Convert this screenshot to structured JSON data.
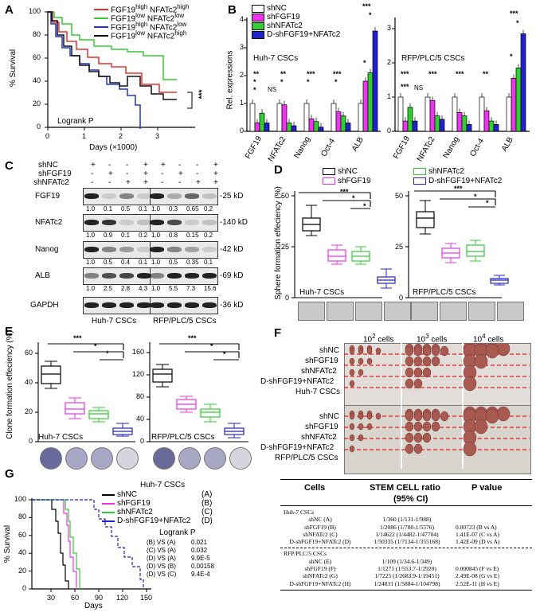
{
  "panels": {
    "A": "A",
    "B": "B",
    "C": "C",
    "D": "D",
    "E": "E",
    "F": "F",
    "G": "G"
  },
  "panelA": {
    "ylabel": "% Survival",
    "xlabel": "Days (×1000)",
    "logrank": "Logrank  P",
    "sig": "***",
    "yticks": [
      "0",
      "20",
      "40",
      "60",
      "80",
      "100"
    ],
    "xticks": [
      "0",
      "1",
      "2",
      "3"
    ],
    "legend": [
      {
        "color": "#e53030",
        "text": "FGF19high NFATc2high",
        "a": "FGF19",
        "b": "high",
        "c": " NFATc2",
        "d": "high"
      },
      {
        "color": "#33cc33",
        "text": "FGF19low NFATc2low",
        "a": "FGF19",
        "b": "low",
        "c": " NFATc2",
        "d": "low"
      },
      {
        "color": "#2233cc",
        "text": "FGF19high NFATc2low",
        "a": "FGF19",
        "b": "high",
        "c": " NFATc2",
        "d": "low"
      },
      {
        "color": "#111111",
        "text": "FGF19low NFATc2high",
        "a": "FGF19",
        "b": "low",
        "c": " NFATc2",
        "d": "high"
      }
    ]
  },
  "panelB": {
    "ylabel": "Rel. expressions",
    "legend": [
      {
        "color": "#ffffff",
        "text": "shNC"
      },
      {
        "color": "#ee33ee",
        "text": "shFGF19"
      },
      {
        "color": "#33cc33",
        "text": "shNFATc2"
      },
      {
        "color": "#2222cc",
        "text": "D-shFGF19+NFATc2"
      }
    ],
    "left_title": "Huh-7 CSCs",
    "right_title": "RFP/PLC/5 CSCs",
    "categories": [
      "FGF19",
      "NFATc2",
      "Nanog",
      "Oct-4",
      "ALB"
    ],
    "yticks_left": [
      "0",
      "1",
      "2",
      "3",
      "4"
    ],
    "yticks_right": [
      "0",
      "1",
      "2",
      "3"
    ],
    "ns": "NS"
  },
  "panelC": {
    "rows": [
      "shNC",
      "shFGF19",
      "shNFATc2"
    ],
    "signs": [
      [
        "+",
        "-",
        "-",
        "+",
        "+",
        "-",
        "-",
        "+"
      ],
      [
        "-",
        "+",
        "-",
        "+",
        "-",
        "+",
        "-",
        "+"
      ],
      [
        "-",
        "-",
        "+",
        "+",
        "-",
        "-",
        "+",
        "+"
      ]
    ],
    "blots": [
      {
        "name": "FGF19",
        "kd": "25 kD",
        "vals": [
          "1.0",
          "0.1",
          "0.5",
          "0.1",
          "1.0",
          "0.3",
          "0.65",
          "0.2"
        ]
      },
      {
        "name": "NFATc2",
        "kd": "140 kD",
        "vals": [
          "1.0",
          "0.9",
          "0.1",
          "0.2",
          "1.0",
          "0.8",
          "0.15",
          "0.2"
        ]
      },
      {
        "name": "Nanog",
        "kd": "42 kD",
        "vals": [
          "1.0",
          "0.5",
          "0.4",
          "0.1",
          "1.0",
          "0.5",
          "0.35",
          "0.1"
        ]
      },
      {
        "name": "ALB",
        "kd": "69 kD",
        "vals": [
          "1.0",
          "2.5",
          "2.8",
          "4.3",
          "1.0",
          "5.5",
          "7.3",
          "15.6"
        ]
      },
      {
        "name": "GAPDH",
        "kd": "36 kD",
        "vals": []
      }
    ],
    "left_title": "Huh-7 CSCs",
    "right_title": "RFP/PLC/5 CSCs"
  },
  "panelD": {
    "ylabel": "Sphere formation effeciency (%)",
    "legend": [
      {
        "color": "#000000",
        "text": "shNC"
      },
      {
        "color": "#33cc33",
        "text": "shNFATc2"
      },
      {
        "color": "#ee33ee",
        "text": "shFGF19"
      },
      {
        "color": "#2222cc",
        "text": "D-shFGF19+NFATc2"
      }
    ],
    "left_title": "Huh-7 CSCs",
    "right_title": "RFP/PLC/5 CSCs",
    "yticks_left": [
      "0",
      "25",
      "50"
    ],
    "yticks_right": [
      "0",
      "25",
      "50"
    ]
  },
  "panelE": {
    "ylabel": "Clone formation effeciency (%)",
    "left_title": "Huh-7 CSCs",
    "right_title": "RFP/PLC/5 CSCs",
    "yticks_left": [
      "0",
      "20",
      "40",
      "60"
    ],
    "yticks_right": [
      "0",
      "40",
      "80",
      "120",
      "160"
    ]
  },
  "panelF": {
    "cols": [
      "10",
      "2",
      "cells",
      "10",
      "3",
      "cells",
      "10",
      "4",
      "cells"
    ],
    "col1": "10² cells",
    "col2": "10³ cells",
    "col3": "10⁴ cells",
    "rows_top": [
      "shNC",
      "shFGF19",
      "shNFATc2",
      "D-shFGF19+NFATc2",
      "Huh-7 CSCs"
    ],
    "rows_bottom": [
      "shNC",
      "shFGF19",
      "shNFATc2",
      "D-shFGF19+NFATc2",
      "RFP/PLC/5 CSCs"
    ]
  },
  "panelG": {
    "title": "Huh-7 CSCs",
    "ylabel": "% Survival",
    "xlabel": "Days",
    "xticks": [
      "30",
      "60",
      "90",
      "120",
      "150"
    ],
    "yticks": [
      "0",
      "20",
      "40",
      "60",
      "80",
      "100"
    ],
    "legend": [
      {
        "color": "#000000",
        "text": "shNC",
        "tag": "(A)"
      },
      {
        "color": "#ee33ee",
        "text": "shFGF19",
        "tag": "(B)"
      },
      {
        "color": "#33cc33",
        "text": "shNFATc2",
        "tag": "(C)"
      },
      {
        "color": "#2222cc",
        "text": "D-shFGF19+NFATc2",
        "tag": "(D)"
      }
    ],
    "logrank": "Logrank  P",
    "stats": [
      {
        "cmp": "(B) VS (A)",
        "p": "0.021"
      },
      {
        "cmp": "(C) VS (A)",
        "p": "0.032"
      },
      {
        "cmp": "(D) VS (A)",
        "p": "9.9E-5"
      },
      {
        "cmp": "(D) VS (B)",
        "p": "0.00158"
      },
      {
        "cmp": "(D) VS (C)",
        "p": "9.4E-4"
      }
    ]
  },
  "stemTable": {
    "h1": "Cells",
    "h2": "STEM CELL ratio",
    "h2b": "(95% CI)",
    "h3": "P value",
    "group1": "Huh-7 CSCs",
    "rows1": [
      {
        "c": "shNC (A)",
        "r": "1/360 (1/131-1/988)",
        "p": ""
      },
      {
        "c": "shFGF19 (B)",
        "r": "1/2086 (1/780-1/5576)",
        "p": "0.00723 (B vs A)"
      },
      {
        "c": "shNFATc2 (C)",
        "r": "1/14622 (1/4482-1/47704)",
        "p": "1.41E-07 (C vs A)"
      },
      {
        "c": "D-shFGF19+NFATc2 (D)",
        "r": "1/50335 (1/7134-1/355168)",
        "p": "1.42E-09 (D vs A)"
      }
    ],
    "group2": "RFP/PLC/5 CSCs",
    "rows2": [
      {
        "c": "shNC (E)",
        "r": "1/109 (1/34.6-1/349)",
        "p": ""
      },
      {
        "c": "shFGF19 (F)",
        "r": "1/1271 (1/553.7-1/2920)",
        "p": "0.000845 (F vs E)"
      },
      {
        "c": "shNFATc2 (G)",
        "r": "1/7225 (1/2683.9-1/19451)",
        "p": "2.49E-08 (G vs E)"
      },
      {
        "c": "D-shFGF19+NFATc2 (H)",
        "r": "1/24831 (1/5884-1/104798)",
        "p": "2.52E-11 (H vs E)"
      }
    ]
  },
  "sig": {
    "s3": "***",
    "s1": "*",
    "s2": "**"
  }
}
